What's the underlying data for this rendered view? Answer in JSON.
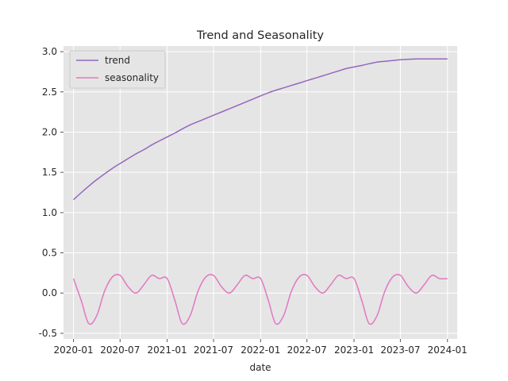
{
  "chart_data": {
    "type": "line",
    "title": "Trend and Seasonality",
    "xlabel": "date",
    "ylabel": "",
    "xlim": [
      "2019-11-23",
      "2024-02-08"
    ],
    "ylim": [
      -0.57,
      3.07
    ],
    "grid": true,
    "legend_position": "top-left",
    "x_ticks": [
      "2020-01",
      "2020-07",
      "2021-01",
      "2021-07",
      "2022-01",
      "2022-07",
      "2023-01",
      "2023-07",
      "2024-01"
    ],
    "y_ticks": [
      -0.5,
      0.0,
      0.5,
      1.0,
      1.5,
      2.0,
      2.5,
      3.0
    ],
    "x": [
      "2020-01-01",
      "2020-02-01",
      "2020-03-01",
      "2020-04-01",
      "2020-05-01",
      "2020-06-01",
      "2020-07-01",
      "2020-08-01",
      "2020-09-01",
      "2020-10-01",
      "2020-11-01",
      "2020-12-01",
      "2021-01-01",
      "2021-02-01",
      "2021-03-01",
      "2021-04-01",
      "2021-05-01",
      "2021-06-01",
      "2021-07-01",
      "2021-08-01",
      "2021-09-01",
      "2021-10-01",
      "2021-11-01",
      "2021-12-01",
      "2022-01-01",
      "2022-02-01",
      "2022-03-01",
      "2022-04-01",
      "2022-05-01",
      "2022-06-01",
      "2022-07-01",
      "2022-08-01",
      "2022-09-01",
      "2022-10-01",
      "2022-11-01",
      "2022-12-01",
      "2023-01-01",
      "2023-02-01",
      "2023-03-01",
      "2023-04-01",
      "2023-05-01",
      "2023-06-01",
      "2023-07-01",
      "2023-08-01",
      "2023-09-01",
      "2023-10-01",
      "2023-11-01",
      "2023-12-01",
      "2024-01-01"
    ],
    "series": [
      {
        "name": "trend",
        "color": "#9467bd",
        "values": [
          1.16,
          1.25,
          1.33,
          1.41,
          1.48,
          1.55,
          1.61,
          1.67,
          1.73,
          1.78,
          1.84,
          1.89,
          1.94,
          1.99,
          2.04,
          2.09,
          2.13,
          2.17,
          2.21,
          2.25,
          2.29,
          2.33,
          2.37,
          2.41,
          2.45,
          2.49,
          2.52,
          2.55,
          2.58,
          2.61,
          2.64,
          2.67,
          2.7,
          2.73,
          2.76,
          2.79,
          2.81,
          2.83,
          2.85,
          2.87,
          2.88,
          2.89,
          2.9,
          2.905,
          2.91,
          2.91,
          2.91,
          2.91,
          2.91
        ]
      },
      {
        "name": "seasonality",
        "color": "#e377c2",
        "values": [
          0.18,
          -0.1,
          -0.38,
          -0.28,
          0.02,
          0.2,
          0.22,
          0.08,
          0.0,
          0.1,
          0.22,
          0.18,
          0.18,
          -0.1,
          -0.38,
          -0.28,
          0.02,
          0.2,
          0.22,
          0.08,
          0.0,
          0.1,
          0.22,
          0.18,
          0.18,
          -0.1,
          -0.38,
          -0.28,
          0.02,
          0.2,
          0.22,
          0.08,
          0.0,
          0.1,
          0.22,
          0.18,
          0.18,
          -0.1,
          -0.38,
          -0.28,
          0.02,
          0.2,
          0.22,
          0.08,
          0.0,
          0.1,
          0.22,
          0.18,
          0.18
        ]
      }
    ]
  }
}
